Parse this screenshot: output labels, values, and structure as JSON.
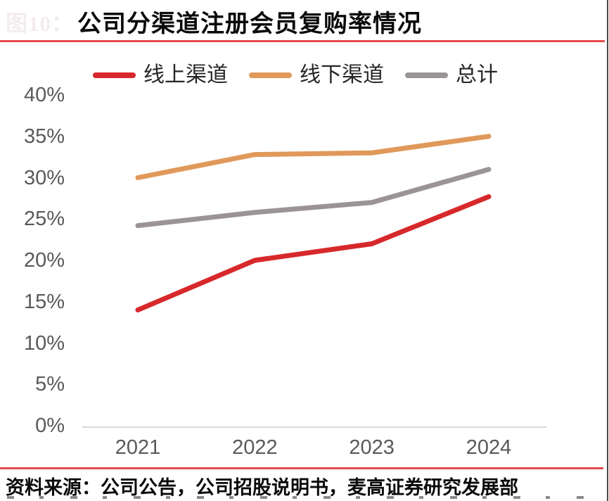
{
  "figure_label": "图10：",
  "title": "公司分渠道注册会员复购率情况",
  "footer": {
    "source_text": "资料来源：公司公告，公司招股说明书，麦高证券研究发展部"
  },
  "colors": {
    "divider_red": "#e7494d",
    "axis_text": "#595959",
    "axis_line": "#d9d9d9",
    "title_text": "#0a0a0a"
  },
  "chart_data": {
    "type": "line",
    "title": "公司分渠道注册会员复购率情况",
    "categories": [
      "2021",
      "2022",
      "2023",
      "2024"
    ],
    "series": [
      {
        "name": "线上渠道",
        "color": "#d7282b",
        "values": [
          14,
          20,
          22,
          27.7
        ]
      },
      {
        "name": "线下渠道",
        "color": "#e0995a",
        "values": [
          30,
          32.8,
          33,
          35
        ]
      },
      {
        "name": "总计",
        "color": "#9b9495",
        "values": [
          24.2,
          25.8,
          27,
          31
        ]
      }
    ],
    "xlabel": "",
    "ylabel": "",
    "ylim": [
      0,
      40
    ],
    "ytick_step": 5,
    "ytick_suffix": "%",
    "grid": false,
    "legend_position": "top"
  }
}
